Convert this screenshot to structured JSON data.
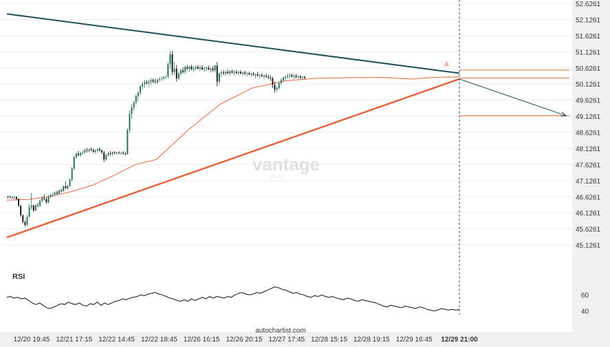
{
  "chart_data": {
    "type": "candlestick",
    "title": "",
    "watermark": {
      "brand": "vantage",
      "sub": "PLUS"
    },
    "source_label": "autochartist.com",
    "price_axis": {
      "ylim": [
        44.6261,
        52.6261
      ],
      "ticks": [
        "52.6261",
        "52.1261",
        "51.6261",
        "51.1261",
        "50.6261",
        "50.1261",
        "49.6261",
        "49.1261",
        "48.6261",
        "48.1261",
        "47.6261",
        "47.1261",
        "46.6261",
        "46.1261",
        "45.6261",
        "45.1261"
      ]
    },
    "time_axis": {
      "labels": [
        "12/20 19:45",
        "12/21 17:15",
        "12/22 14:45",
        "12/22 18:45",
        "12/26 16:15",
        "12/26 20:15",
        "12/27 17:45",
        "12/28 15:15",
        "12/28 19:15",
        "12/29 16:45",
        "12/29 21:00"
      ],
      "highlight_label": "12/29 21:00"
    },
    "colors": {
      "up": "#1f6b5c",
      "down": "#111111",
      "resistance": "#1f4e5a",
      "support": "#e8643c",
      "moving_average": "#e8643c",
      "forecast_arrow": "#1f4e5a",
      "rsi_line": "#111111",
      "grid": "#eeeeee",
      "axis_band": "#f0f0f0"
    },
    "resistance_line": {
      "from": [
        0,
        52.3
      ],
      "to": [
        212,
        50.46
      ]
    },
    "support_line": {
      "from": [
        0,
        45.36
      ],
      "to": [
        212,
        50.28
      ]
    },
    "moving_average": [
      [
        0,
        46.52
      ],
      [
        10,
        46.54
      ],
      [
        20,
        46.63
      ],
      [
        30,
        46.78
      ],
      [
        40,
        46.98
      ],
      [
        50,
        47.28
      ],
      [
        60,
        47.62
      ],
      [
        70,
        47.78
      ],
      [
        85,
        48.7
      ],
      [
        100,
        49.5
      ],
      [
        115,
        50.0
      ],
      [
        130,
        50.22
      ],
      [
        145,
        50.3
      ],
      [
        160,
        50.32
      ],
      [
        175,
        50.33
      ],
      [
        190,
        50.28
      ],
      [
        200,
        50.33
      ],
      [
        212,
        50.35
      ]
    ],
    "forecast_arrow": {
      "from": [
        212,
        50.28
      ],
      "to": [
        262,
        49.14
      ]
    },
    "forecast_levels": [
      50.56,
      50.31,
      49.14
    ],
    "pattern_marker": "A",
    "current_bar_index": 212,
    "candles": [
      [
        46.63,
        46.65,
        46.57,
        46.62
      ],
      [
        46.62,
        46.66,
        46.58,
        46.61
      ],
      [
        46.61,
        46.63,
        46.57,
        46.6
      ],
      [
        46.6,
        46.65,
        46.55,
        46.62
      ],
      [
        46.62,
        46.64,
        46.52,
        46.56
      ],
      [
        46.56,
        46.58,
        46.3,
        46.35
      ],
      [
        46.35,
        46.36,
        46.0,
        46.05
      ],
      [
        46.05,
        46.07,
        45.8,
        45.84
      ],
      [
        45.84,
        45.9,
        45.7,
        45.75
      ],
      [
        45.75,
        46.05,
        45.72,
        46.0
      ],
      [
        46.0,
        46.4,
        45.98,
        46.3
      ],
      [
        46.3,
        46.74,
        46.22,
        46.35
      ],
      [
        46.35,
        46.38,
        46.15,
        46.2
      ],
      [
        46.2,
        46.4,
        46.18,
        46.36
      ],
      [
        46.36,
        46.44,
        46.3,
        46.34
      ],
      [
        46.34,
        46.55,
        46.32,
        46.5
      ],
      [
        46.5,
        46.65,
        46.45,
        46.58
      ],
      [
        46.58,
        46.7,
        46.5,
        46.55
      ],
      [
        46.55,
        46.6,
        46.4,
        46.45
      ],
      [
        46.45,
        46.68,
        46.42,
        46.64
      ],
      [
        46.64,
        46.72,
        46.58,
        46.68
      ],
      [
        46.68,
        46.76,
        46.62,
        46.7
      ],
      [
        46.7,
        46.8,
        46.65,
        46.75
      ],
      [
        46.75,
        46.82,
        46.68,
        46.72
      ],
      [
        46.72,
        46.85,
        46.7,
        46.82
      ],
      [
        46.82,
        46.88,
        46.76,
        46.8
      ],
      [
        46.8,
        46.98,
        46.78,
        46.95
      ],
      [
        46.95,
        47.1,
        46.9,
        46.88
      ],
      [
        46.88,
        47.0,
        46.84,
        46.96
      ],
      [
        46.96,
        47.2,
        46.92,
        47.15
      ],
      [
        47.15,
        47.55,
        47.1,
        47.5
      ],
      [
        47.5,
        47.9,
        47.45,
        47.85
      ],
      [
        47.85,
        48.0,
        47.8,
        47.96
      ],
      [
        47.96,
        48.05,
        47.88,
        47.92
      ],
      [
        47.92,
        48.02,
        47.86,
        47.98
      ],
      [
        47.98,
        48.06,
        47.92,
        48.0
      ],
      [
        48.0,
        48.12,
        47.96,
        48.08
      ],
      [
        48.08,
        48.14,
        48.0,
        48.06
      ],
      [
        48.06,
        48.12,
        48.0,
        48.1
      ],
      [
        48.1,
        48.16,
        48.04,
        48.08
      ],
      [
        48.08,
        48.12,
        47.98,
        48.02
      ],
      [
        48.02,
        48.1,
        47.96,
        48.06
      ],
      [
        48.06,
        48.14,
        48.0,
        48.1
      ],
      [
        48.1,
        48.16,
        48.02,
        48.06
      ],
      [
        48.06,
        48.1,
        47.95,
        48.0
      ],
      [
        48.0,
        48.05,
        47.7,
        47.78
      ],
      [
        47.78,
        47.95,
        47.74,
        47.92
      ],
      [
        47.92,
        48.02,
        47.88,
        47.98
      ],
      [
        47.98,
        48.04,
        47.9,
        47.96
      ],
      [
        47.96,
        48.02,
        47.9,
        48.0
      ],
      [
        48.0,
        48.04,
        47.94,
        47.98
      ],
      [
        47.98,
        48.02,
        47.92,
        48.0
      ],
      [
        48.0,
        48.04,
        47.94,
        47.98
      ],
      [
        47.98,
        48.02,
        47.92,
        47.99
      ],
      [
        47.99,
        48.04,
        47.93,
        47.97
      ],
      [
        47.97,
        48.01,
        47.9,
        47.95
      ],
      [
        47.95,
        48.75,
        47.93,
        48.7
      ],
      [
        48.7,
        49.3,
        48.6,
        49.2
      ],
      [
        49.2,
        49.5,
        49.05,
        49.4
      ],
      [
        49.4,
        49.6,
        49.3,
        49.55
      ],
      [
        49.55,
        49.8,
        49.48,
        49.75
      ],
      [
        49.75,
        49.9,
        49.6,
        49.85
      ],
      [
        49.85,
        50.1,
        49.78,
        50.05
      ],
      [
        50.05,
        50.2,
        49.95,
        50.12
      ],
      [
        50.12,
        50.25,
        50.0,
        50.18
      ],
      [
        50.18,
        50.25,
        50.1,
        50.15
      ],
      [
        50.15,
        50.25,
        50.05,
        50.2
      ],
      [
        50.2,
        50.3,
        50.1,
        50.25
      ],
      [
        50.25,
        50.3,
        50.15,
        50.2
      ],
      [
        50.2,
        50.28,
        50.14,
        50.18
      ],
      [
        50.18,
        50.3,
        50.12,
        50.26
      ],
      [
        50.26,
        50.34,
        50.18,
        50.28
      ],
      [
        50.28,
        50.35,
        50.22,
        50.3
      ],
      [
        50.3,
        50.38,
        50.24,
        50.34
      ],
      [
        50.34,
        50.4,
        50.28,
        50.36
      ],
      [
        50.36,
        50.8,
        50.3,
        50.75
      ],
      [
        50.75,
        51.15,
        50.6,
        51.05
      ],
      [
        51.05,
        51.15,
        50.4,
        50.5
      ],
      [
        50.5,
        50.8,
        50.4,
        50.6
      ],
      [
        50.6,
        50.72,
        50.2,
        50.3
      ],
      [
        50.3,
        50.5,
        50.25,
        50.45
      ],
      [
        50.45,
        50.6,
        50.38,
        50.55
      ],
      [
        50.55,
        50.65,
        50.45,
        50.5
      ],
      [
        50.5,
        50.7,
        50.44,
        50.65
      ],
      [
        50.65,
        50.72,
        50.55,
        50.6
      ],
      [
        50.6,
        50.7,
        50.5,
        50.66
      ],
      [
        50.66,
        50.72,
        50.55,
        50.58
      ],
      [
        50.58,
        50.68,
        50.5,
        50.62
      ],
      [
        50.62,
        50.7,
        50.55,
        50.66
      ],
      [
        50.66,
        50.72,
        50.58,
        50.6
      ],
      [
        50.6,
        50.7,
        50.52,
        50.64
      ],
      [
        50.64,
        50.72,
        50.55,
        50.58
      ],
      [
        50.58,
        50.66,
        50.5,
        50.6
      ],
      [
        50.6,
        50.68,
        50.52,
        50.63
      ],
      [
        50.63,
        50.7,
        50.55,
        50.57
      ],
      [
        50.57,
        50.66,
        50.48,
        50.6
      ],
      [
        50.6,
        50.68,
        50.5,
        50.55
      ],
      [
        50.55,
        50.72,
        50.48,
        50.7
      ],
      [
        50.7,
        50.8,
        50.05,
        50.2
      ],
      [
        50.2,
        50.5,
        50.1,
        50.45
      ],
      [
        50.45,
        50.55,
        50.35,
        50.48
      ],
      [
        50.48,
        50.56,
        50.4,
        50.45
      ],
      [
        50.45,
        50.55,
        50.38,
        50.5
      ],
      [
        50.5,
        50.58,
        50.42,
        50.46
      ],
      [
        50.46,
        50.55,
        50.4,
        50.52
      ],
      [
        50.52,
        50.58,
        50.45,
        50.48
      ],
      [
        50.48,
        50.55,
        50.4,
        50.5
      ],
      [
        50.5,
        50.56,
        50.44,
        50.46
      ],
      [
        50.46,
        50.54,
        50.4,
        50.5
      ],
      [
        50.5,
        50.56,
        50.42,
        50.45
      ],
      [
        50.45,
        50.52,
        50.38,
        50.48
      ],
      [
        50.48,
        50.54,
        50.4,
        50.44
      ],
      [
        50.44,
        50.5,
        50.36,
        50.46
      ],
      [
        50.46,
        50.52,
        50.4,
        50.42
      ],
      [
        50.42,
        50.48,
        50.34,
        50.44
      ],
      [
        50.44,
        50.5,
        50.38,
        50.4
      ],
      [
        50.4,
        50.46,
        50.3,
        50.42
      ],
      [
        50.42,
        50.5,
        50.36,
        50.38
      ],
      [
        50.38,
        50.44,
        50.3,
        50.4
      ],
      [
        50.4,
        50.46,
        50.34,
        50.36
      ],
      [
        50.36,
        50.42,
        50.28,
        50.38
      ],
      [
        50.38,
        50.45,
        50.32,
        50.35
      ],
      [
        50.35,
        50.42,
        50.28,
        50.32
      ],
      [
        50.32,
        50.4,
        50.22,
        50.3
      ],
      [
        50.3,
        50.35,
        50.0,
        50.1
      ],
      [
        50.1,
        50.2,
        49.85,
        49.95
      ],
      [
        49.95,
        50.05,
        49.88,
        50.0
      ],
      [
        50.0,
        50.2,
        49.95,
        50.15
      ],
      [
        50.15,
        50.3,
        50.1,
        50.25
      ],
      [
        50.25,
        50.36,
        50.18,
        50.32
      ],
      [
        50.32,
        50.4,
        50.25,
        50.35
      ],
      [
        50.35,
        50.45,
        50.28,
        50.38
      ],
      [
        50.38,
        50.46,
        50.3,
        50.4
      ],
      [
        50.4,
        50.46,
        50.32,
        50.36
      ],
      [
        50.36,
        50.42,
        50.28,
        50.38
      ],
      [
        50.38,
        50.44,
        50.3,
        50.34
      ],
      [
        50.34,
        50.4,
        50.28,
        50.36
      ],
      [
        50.36,
        50.4,
        50.28,
        50.32
      ],
      [
        50.32,
        50.38,
        50.26,
        50.34
      ],
      [
        50.34,
        50.38,
        50.28,
        50.31
      ]
    ],
    "rsi": {
      "label": "RSI",
      "ticks": [
        "60",
        "40"
      ],
      "ylim": [
        25,
        85
      ],
      "values": [
        57,
        58,
        56,
        57,
        55,
        56,
        53,
        50,
        48,
        50,
        47,
        44,
        43,
        45,
        47,
        49,
        48,
        51,
        49,
        48,
        50,
        47,
        46,
        49,
        48,
        51,
        47,
        50,
        48,
        50,
        52,
        53,
        55,
        54,
        56,
        57,
        58,
        60,
        59,
        61,
        62,
        63,
        61,
        60,
        58,
        56,
        55,
        53,
        52,
        54,
        52,
        55,
        53,
        55,
        57,
        55,
        58,
        56,
        58,
        57,
        56,
        58,
        57,
        60,
        62,
        63,
        61,
        60,
        61,
        63,
        62,
        64,
        66,
        68,
        70,
        69,
        67,
        66,
        64,
        62,
        63,
        61,
        60,
        58,
        57,
        59,
        58,
        60,
        58,
        57,
        58,
        56,
        55,
        54,
        56,
        55,
        53,
        52,
        54,
        53,
        52,
        51,
        50,
        48,
        46,
        45,
        47,
        46,
        45,
        44,
        46,
        45,
        44,
        43,
        45,
        44,
        42,
        41,
        40,
        41,
        43,
        42,
        41,
        42,
        41,
        42
      ]
    }
  }
}
